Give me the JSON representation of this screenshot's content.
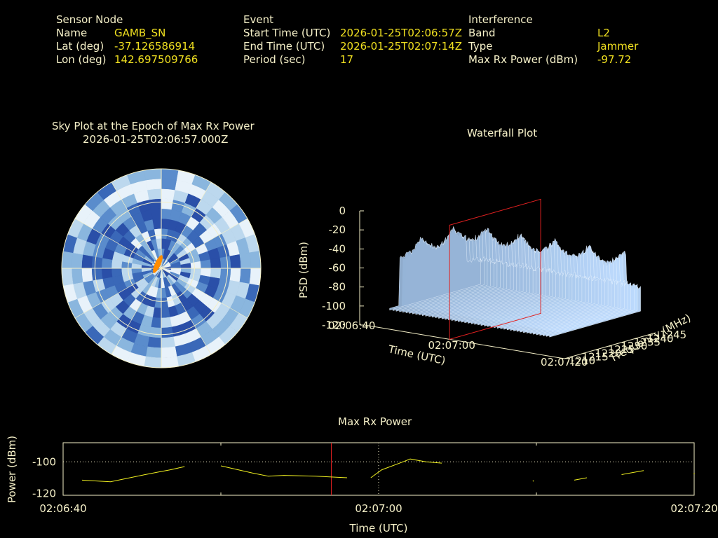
{
  "header": {
    "sensor": {
      "heading": "Sensor Node",
      "name_label": "Name",
      "name_value": "GAMB_SN",
      "lat_label": "Lat (deg)",
      "lat_value": "-37.126586914",
      "lon_label": "Lon (deg)",
      "lon_value": "142.697509766"
    },
    "event": {
      "heading": "Event",
      "start_label": "Start Time (UTC)",
      "start_value": "2026-01-25T02:06:57Z",
      "end_label": "End Time (UTC)",
      "end_value": "2026-01-25T02:07:14Z",
      "period_label": "Period (sec)",
      "period_value": "17"
    },
    "interference": {
      "heading": "Interference",
      "band_label": "Band",
      "band_value": "L2",
      "type_label": "Type",
      "type_value": "Jammer",
      "power_label": "Max Rx Power (dBm)",
      "power_value": "-97.72"
    }
  },
  "colors": {
    "label": "#f5f0c8",
    "value": "#f0e020",
    "marker": "#e02020",
    "trace": "#f0f020",
    "sky_ring": "#f5f0c8",
    "sky_source": "#ff8c00",
    "sky_palette": [
      "#2a4fa8",
      "#3a68b8",
      "#5a8ccc",
      "#8ab6de",
      "#bcd8ee",
      "#e8f2fa"
    ]
  },
  "chart_data": [
    {
      "type": "heatmap",
      "subtype": "polar-sky-plot",
      "title": "Sky Plot at the Epoch of Max Rx Power",
      "subtitle": "2026-01-25T02:06:57.000Z",
      "grid": true,
      "source_marker": {
        "label": "",
        "color": "orange"
      }
    },
    {
      "type": "area",
      "subtype": "3d-waterfall",
      "title": "Waterfall Plot",
      "xlabel": "Time (UTC)",
      "ylabel": "Frequency (MHz)",
      "zlabel": "PSD (dBm)",
      "x_ticks": [
        "02:06:40",
        "02:07:00",
        "02:07:20"
      ],
      "y_ticks": [
        "1210",
        "1215",
        "1220",
        "1225",
        "1230",
        "1235",
        "1240",
        "1245"
      ],
      "z_ticks": [
        "0",
        "-20",
        "-40",
        "-60",
        "-80",
        "-100",
        "-120"
      ],
      "xlim": [
        0,
        40
      ],
      "ylim": [
        1210,
        1245
      ],
      "zlim": [
        -120,
        0
      ],
      "marker_plane_time": "02:06:57"
    },
    {
      "type": "line",
      "title": "Max Rx Power",
      "xlabel": "Time (UTC)",
      "ylabel": "Power (dBm)",
      "x_ticks": [
        "02:06:40",
        "02:07:00",
        "02:07:20"
      ],
      "y_ticks": [
        "-100",
        "-120"
      ],
      "xlim": [
        0,
        40
      ],
      "ylim": [
        -121,
        -88
      ],
      "reference_line": -100,
      "marker_time_sec": 17,
      "segments": [
        [
          [
            1.2,
            -111.5
          ],
          [
            3.0,
            -112.5
          ],
          [
            5.2,
            -108.0
          ],
          [
            6.0,
            -106.5
          ],
          [
            6.8,
            -105.0
          ],
          [
            7.7,
            -103.0
          ]
        ],
        [
          [
            10.0,
            -102.5
          ],
          [
            12.0,
            -107.0
          ],
          [
            13.0,
            -109.0
          ],
          [
            14.0,
            -108.5
          ],
          [
            16.0,
            -109.0
          ],
          [
            17.0,
            -109.5
          ],
          [
            18.0,
            -110.0
          ]
        ],
        [
          [
            19.5,
            -110.0
          ],
          [
            20.2,
            -105.0
          ],
          [
            21.5,
            -100.2
          ],
          [
            22.0,
            -98.2
          ],
          [
            23.0,
            -100.0
          ],
          [
            24.0,
            -100.8
          ]
        ],
        [
          [
            32.4,
            -111.5
          ],
          [
            33.2,
            -110.0
          ]
        ],
        [
          [
            35.4,
            -108.0
          ],
          [
            36.8,
            -105.5
          ]
        ]
      ],
      "dots": [
        [
          29.8,
          -112.0
        ],
        [
          40.0,
          -107.5
        ]
      ]
    }
  ]
}
